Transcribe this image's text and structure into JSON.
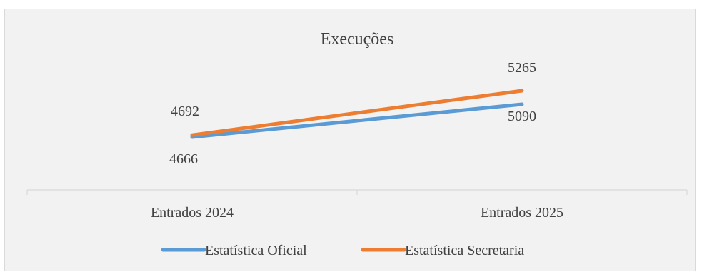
{
  "chart_data": {
    "type": "line",
    "title": "Execuções",
    "categories": [
      "Entrados 2024",
      "Entrados 2025"
    ],
    "series": [
      {
        "name": "Estatística Oficial",
        "values": [
          4666,
          5090
        ],
        "color": "#5b9bd5",
        "label_position": "below"
      },
      {
        "name": "Estatística Secretaria",
        "values": [
          4692,
          5265
        ],
        "color": "#ed7d31",
        "label_position": "above"
      }
    ],
    "xlabel": "",
    "ylabel": "",
    "y_axis_visible": false,
    "grid": false,
    "legend_position": "bottom",
    "background_color": "#f2f2f2"
  }
}
